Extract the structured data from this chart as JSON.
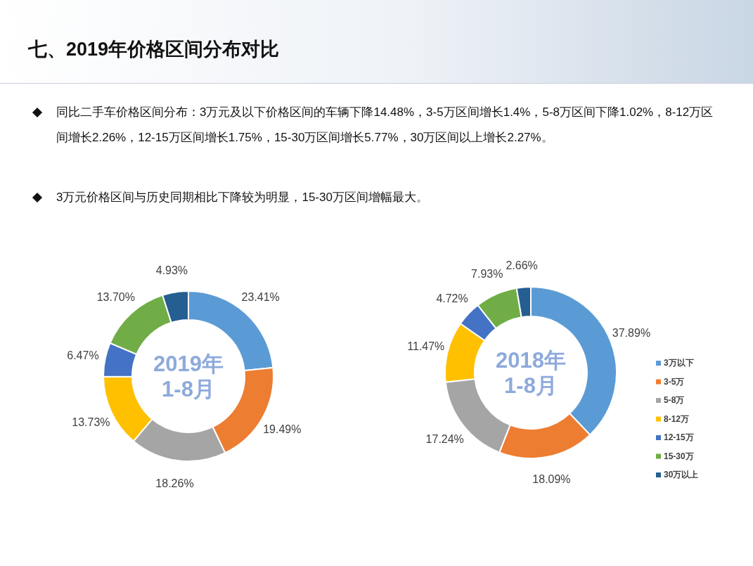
{
  "chart_data": [
    {
      "type": "donut",
      "title": "七、2019年价格区间分布对比",
      "subtitle": "2019年\n1-8月",
      "annotations": [
        "同比二手车价格区间分布：3万元及以下价格区间的车辆下降14.48%，3-5万区间增长1.4%，5-8万区间下降1.02%，8-12万区间增长2.26%，12-15万区间增长1.75%，15-30万区间增长5.77%，30万区间以上增长2.27%。",
        "3万元价格区间与历史同期相比下降较为明显，15-30万区间增幅最大。"
      ],
      "categories": [
        null,
        null,
        null,
        null,
        null,
        null,
        null
      ],
      "values": [
        23.41,
        19.49,
        18.26,
        13.73,
        6.47,
        13.7,
        4.93
      ],
      "value_labels": [
        "23.41%",
        "19.49%",
        "18.26%",
        "13.73%",
        "6.47%",
        "13.70%",
        "4.93%"
      ],
      "colors": [
        "#5b9bd5",
        "#ed7d31",
        "#a5a5a5",
        "#ffc000",
        "#4472c4",
        "#70ad47",
        "#255e91"
      ],
      "legend": false
    },
    {
      "type": "donut",
      "subtitle": "2018年\n1-8月",
      "categories": [
        "3万以下",
        "3-5万",
        "5-8万",
        "8-12万",
        "12-15万",
        "15-30万",
        "30万以上"
      ],
      "values": [
        37.89,
        18.09,
        17.24,
        11.47,
        4.72,
        7.93,
        2.66
      ],
      "value_labels": [
        "37.89%",
        "18.09%",
        "17.24%",
        "11.47%",
        "4.72%",
        "7.93%",
        "2.66%"
      ],
      "colors": [
        "#5b9bd5",
        "#ed7d31",
        "#a5a5a5",
        "#ffc000",
        "#4472c4",
        "#70ad47",
        "#255e91"
      ],
      "legend": "right"
    }
  ]
}
